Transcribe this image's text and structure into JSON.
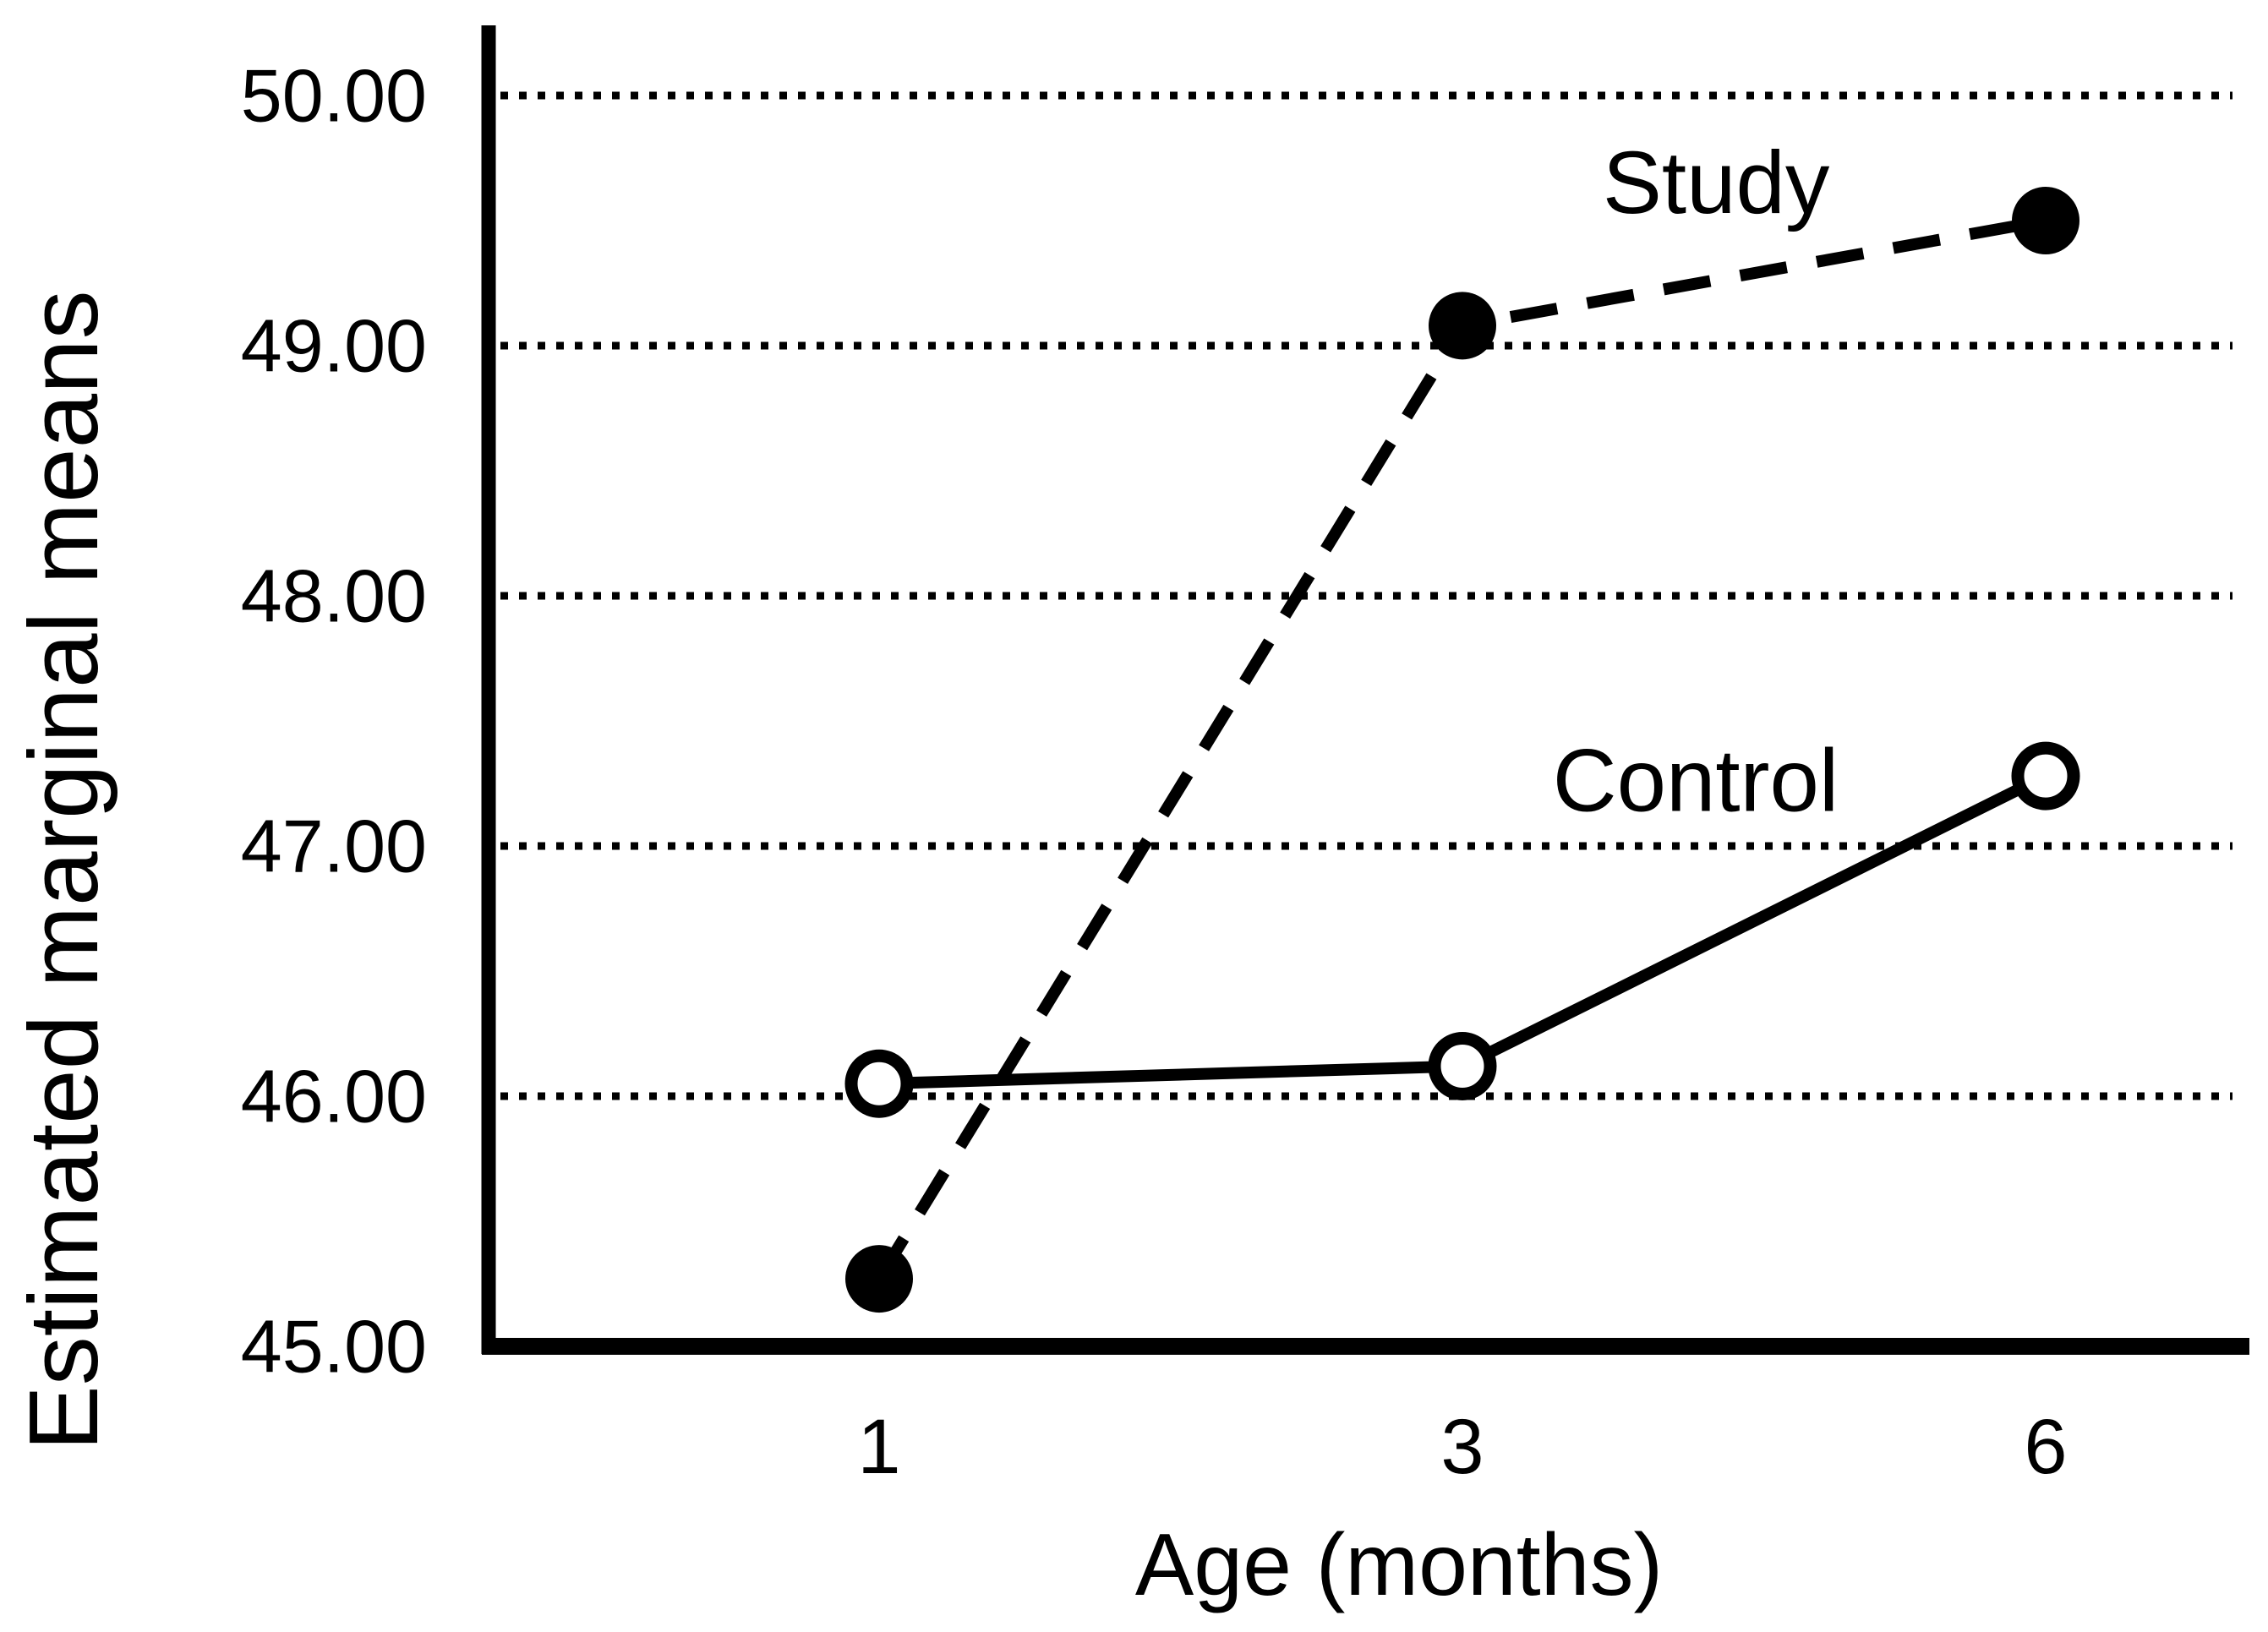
{
  "chart_data": {
    "type": "line",
    "title": "",
    "xlabel": "Age (months)",
    "ylabel": "Estimated marginal means",
    "x_categories": [
      "1",
      "3",
      "6"
    ],
    "y_ticks": [
      "45.00",
      "46.00",
      "47.00",
      "48.00",
      "49.00",
      "50.00"
    ],
    "y_tick_values": [
      45,
      46,
      47,
      48,
      49,
      50
    ],
    "ylim": [
      45,
      50.45
    ],
    "grid": "dotted horizontal gridlines at each y tick above baseline",
    "legend": "inline series labels on plot",
    "series": [
      {
        "name": "Study",
        "values": [
          45.27,
          49.08,
          49.5
        ],
        "line_style": "dashed",
        "marker": "filled-circle",
        "color": "#000000",
        "label_pos": {
          "catx": 1.435,
          "value": 49.65
        }
      },
      {
        "name": "Control",
        "values": [
          46.05,
          46.12,
          47.28
        ],
        "line_style": "solid",
        "marker": "open-circle",
        "color": "#000000",
        "label_pos": {
          "catx": 1.4,
          "value": 47.26
        }
      }
    ]
  },
  "colors": {
    "foreground": "#000000",
    "background": "#ffffff"
  }
}
